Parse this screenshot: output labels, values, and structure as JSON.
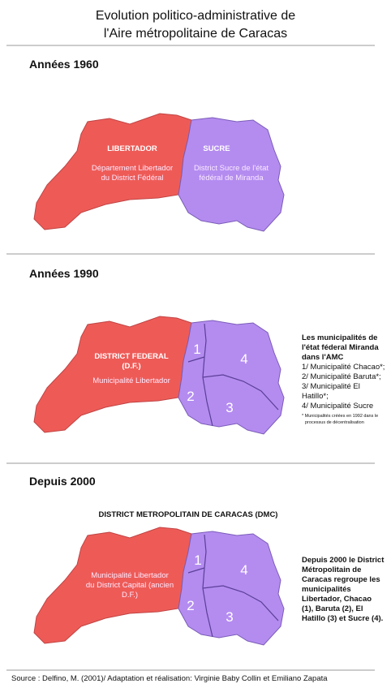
{
  "header": {
    "title": [
      "Evolution politico-administrative de",
      "l'Aire métropolitaine de Caracas"
    ]
  },
  "sections": [
    {
      "heading": "Années 1960",
      "labels": [
        "LIBERTADOR",
        "Département Libertador",
        "du District Fédéral",
        "SUCRE",
        "District Sucre de l'état",
        "fédéral  de Miranda"
      ]
    },
    {
      "heading": "Années 1990",
      "labels": [
        "DISTRICT FEDERAL",
        "(D.F.)",
        "Municipalité Libertador",
        "1",
        "2",
        "3",
        "4"
      ],
      "legend": [
        "Les municipalités de",
        "l'état féderal Miranda",
        "dans l'AMC",
        "1/ Municipalité Chacao*;",
        "2/ Municipalité Baruta*;",
        "3/ Municipalité El",
        "Hatillo*;",
        "4/ Municipalité Sucre"
      ],
      "footnote": [
        "* Municipalités créées en 1992 dans le",
        "processus de décentralisation"
      ]
    },
    {
      "heading": "Depuis 2000",
      "subheading": "DISTRICT METROPOLITAIN DE CARACAS (DMC)",
      "labels": [
        "Municipalité Libertador",
        "du District Capital (ancien",
        "D.F.)",
        "1",
        "2",
        "3",
        "4"
      ],
      "legend": [
        "Depuis 2000 le District",
        "Métropolitain de",
        "Caracas regroupe les",
        "municipalités",
        "Libertador, Chacao",
        "(1), Baruta (2), El",
        "Hatillo (3) et Sucre (4)."
      ]
    }
  ],
  "footer": {
    "source": "Source : Delfino, M. (2001)/ Adaptation et réalisation: Virginie Baby Collin et Emiliano Zapata"
  }
}
